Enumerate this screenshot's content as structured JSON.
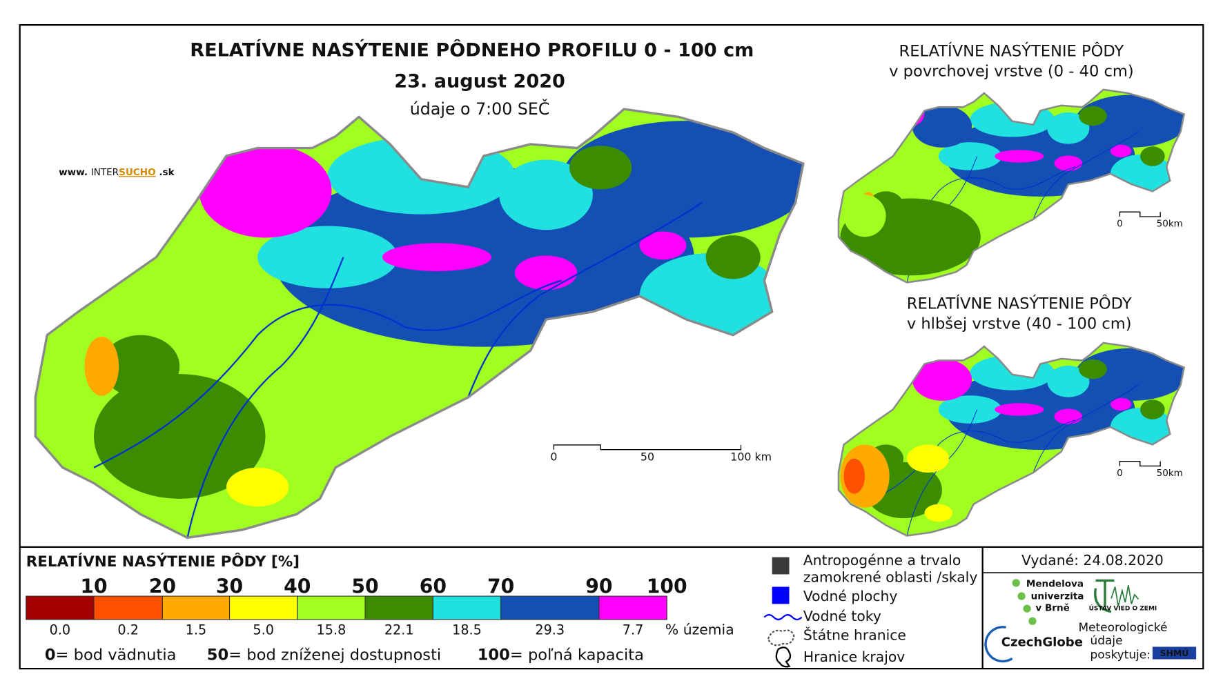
{
  "main_map": {
    "title": "RELATÍVNE NASÝTENIE PÔDNEHO PROFILU 0 - 100 cm",
    "date": "23. august 2020",
    "time_note": "údaje o 7:00 SEČ",
    "website": {
      "prefix": "www.",
      "name_a": "INTER",
      "name_b": "SUCHO",
      "suffix": ".sk"
    },
    "scale_bar": [
      "0",
      "50",
      "100 km"
    ]
  },
  "inset_surface": {
    "title": "RELATÍVNE NASÝTENIE PÔDY",
    "subtitle": "v povrchovej vrstve (0 - 40 cm)",
    "scale_bar": [
      "0",
      "50km"
    ]
  },
  "inset_deep": {
    "title": "RELATÍVNE NASÝTENIE PÔDY",
    "subtitle": "v hlbšej vrstve (40 - 100 cm)",
    "scale_bar": [
      "0",
      "50km"
    ]
  },
  "legend": {
    "title": "RELATÍVNE NASÝTENIE PÔDY [%]",
    "thresholds": [
      "10",
      "20",
      "30",
      "40",
      "50",
      "60",
      "70",
      "90",
      "100"
    ],
    "classes": [
      {
        "color": "#a50000",
        "share": "0.0"
      },
      {
        "color": "#ff5000",
        "share": "0.2"
      },
      {
        "color": "#ffaa00",
        "share": "1.5"
      },
      {
        "color": "#ffff00",
        "share": "5.0"
      },
      {
        "color": "#a0ff20",
        "share": "15.8"
      },
      {
        "color": "#3c8c00",
        "share": "22.1"
      },
      {
        "color": "#20e0e0",
        "share": "18.5"
      },
      {
        "color": "#1450b4",
        "share": "29.3"
      },
      {
        "color": "#ff00ff",
        "share": "7.7"
      }
    ],
    "share_unit": "% územia",
    "notes": [
      {
        "value": "0",
        "text": "= bod vädnutia"
      },
      {
        "value": "50",
        "text": "= bod zníženej dostupnosti"
      },
      {
        "value": "100",
        "text": "= poľná kapacita"
      }
    ]
  },
  "symbols": {
    "anthropogenic": [
      "Antropogénne a trvalo",
      "zamokrené oblasti /skaly"
    ],
    "water_bodies": "Vodné plochy",
    "rivers": "Vodné toky",
    "state_border": "Štátne hranice",
    "regions": "Hranice krajov"
  },
  "issued": "Vydané: 24.08.2020",
  "logos": {
    "mendel": [
      "Mendelova",
      "univerzita",
      "v Brně"
    ],
    "uvz": "ÚSTAV VIED O ZEMI",
    "czechglobe": "CzechGlobe",
    "shmu_note": [
      "Meteorologické",
      "údaje",
      "poskytuje:"
    ],
    "shmu": "SHMÚ"
  }
}
